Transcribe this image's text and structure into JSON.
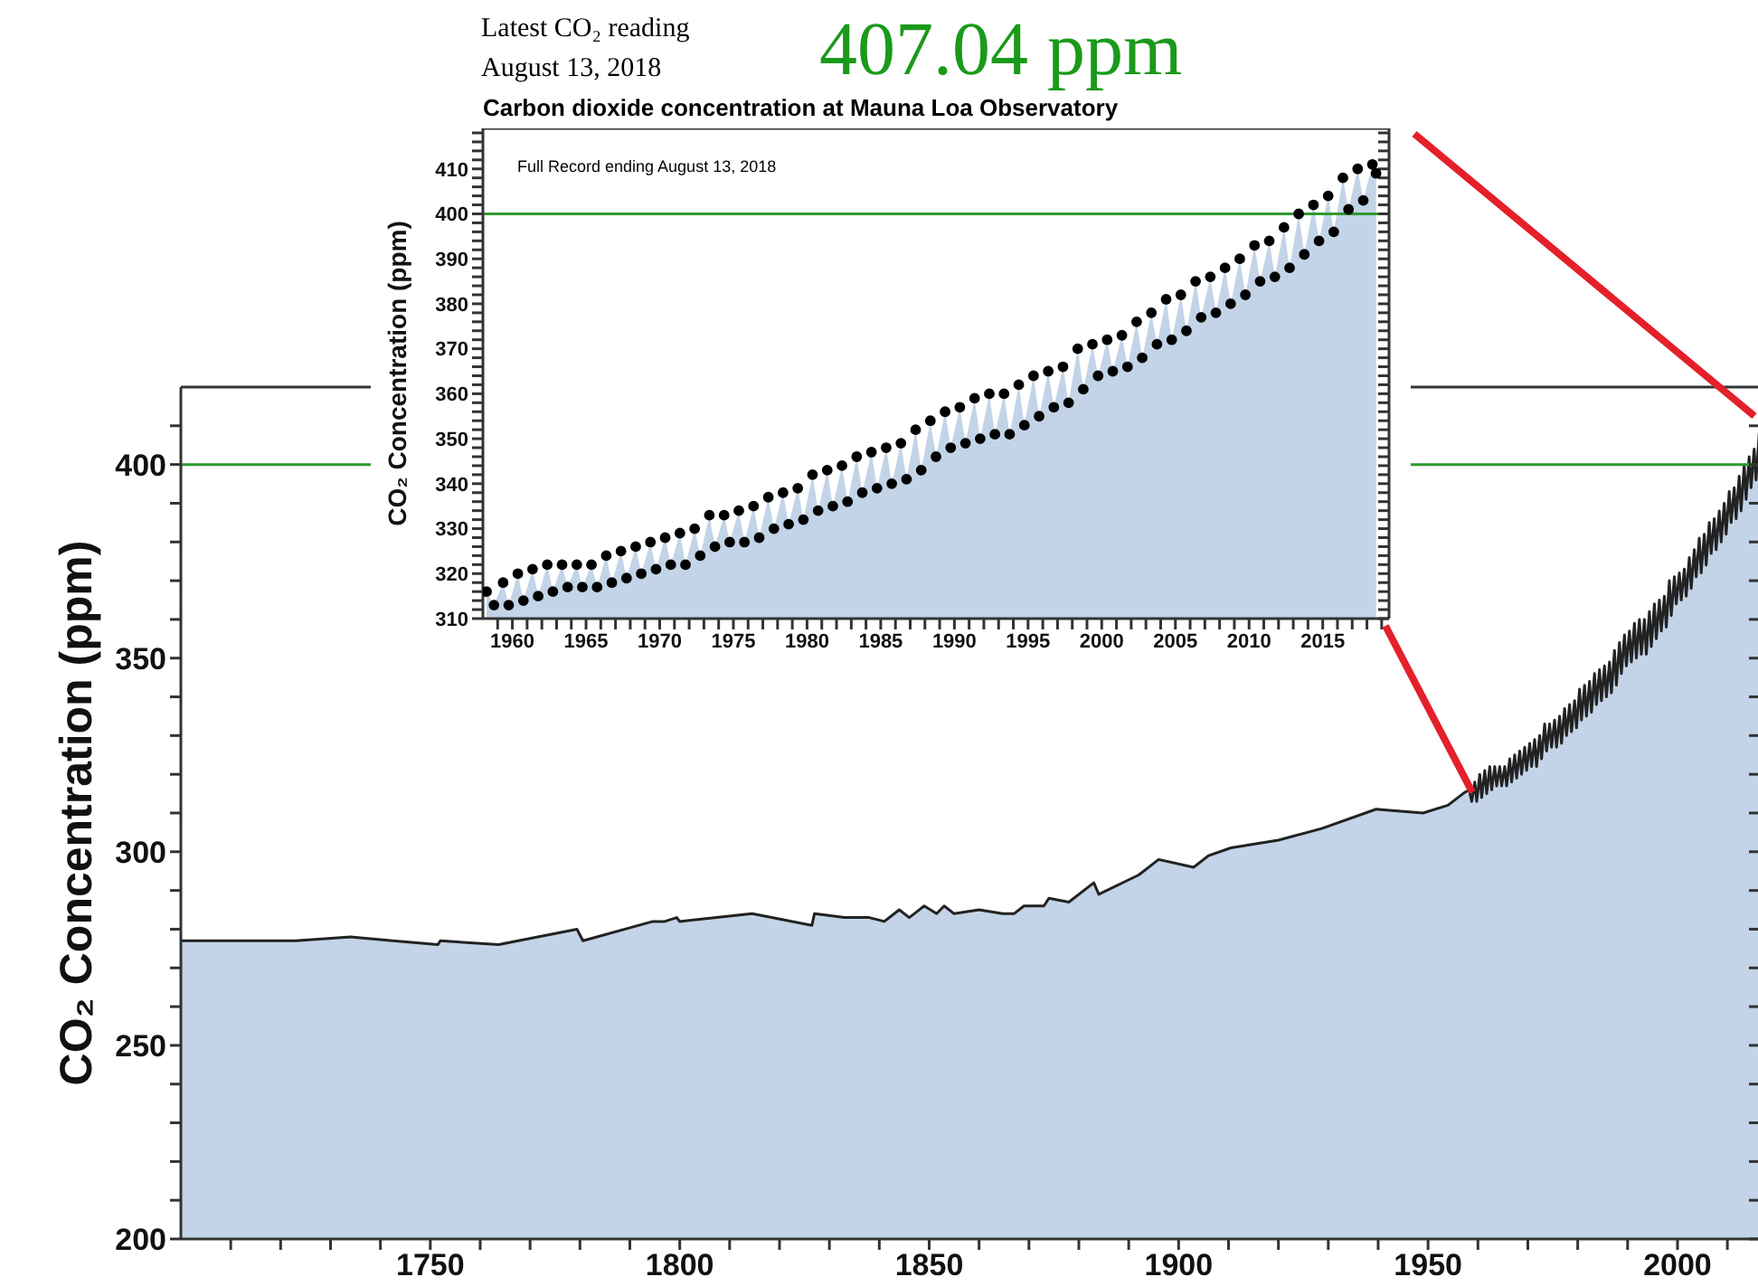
{
  "chart_data": [
    {
      "type": "area",
      "ylabel": "CO₂ Concentration (ppm)",
      "xlim": [
        1700,
        2016.5
      ],
      "ylim": [
        200,
        420
      ],
      "xticks": [
        {
          "value": 1710,
          "label": null
        },
        {
          "value": 1720,
          "label": null
        },
        {
          "value": 1730,
          "label": null
        },
        {
          "value": 1740,
          "label": null
        },
        1750,
        {
          "value": 1760,
          "label": null
        },
        {
          "value": 1770,
          "label": null
        },
        {
          "value": 1780,
          "label": null
        },
        {
          "value": 1790,
          "label": null
        },
        1800,
        {
          "value": 1810,
          "label": null
        },
        {
          "value": 1820,
          "label": null
        },
        {
          "value": 1830,
          "label": null
        },
        {
          "value": 1840,
          "label": null
        },
        1850,
        {
          "value": 1860,
          "label": null
        },
        {
          "value": 1870,
          "label": null
        },
        {
          "value": 1880,
          "label": null
        },
        {
          "value": 1890,
          "label": null
        },
        1900,
        {
          "value": 1910,
          "label": null
        },
        {
          "value": 1920,
          "label": null
        },
        {
          "value": 1930,
          "label": null
        },
        {
          "value": 1940,
          "label": null
        },
        1950,
        {
          "value": 1960,
          "label": null
        },
        {
          "value": 1970,
          "label": null
        },
        {
          "value": 1980,
          "label": null
        },
        {
          "value": 1990,
          "label": null
        },
        2000,
        {
          "value": 2010,
          "label": null
        }
      ],
      "yticks": [
        200,
        {
          "value": 210,
          "label": null
        },
        {
          "value": 220,
          "label": null
        },
        {
          "value": 230,
          "label": null
        },
        {
          "value": 240,
          "label": null
        },
        250,
        {
          "value": 260,
          "label": null
        },
        {
          "value": 270,
          "label": null
        },
        {
          "value": 280,
          "label": null
        },
        {
          "value": 290,
          "label": null
        },
        300,
        {
          "value": 310,
          "label": null
        },
        {
          "value": 320,
          "label": null
        },
        {
          "value": 330,
          "label": null
        },
        {
          "value": 340,
          "label": null
        },
        350,
        {
          "value": 360,
          "label": null
        },
        {
          "value": 370,
          "label": null
        },
        {
          "value": 380,
          "label": null
        },
        {
          "value": 390,
          "label": null
        },
        400,
        {
          "value": 410,
          "label": null
        }
      ],
      "ref_lines": [
        {
          "axis": "y",
          "value": 400,
          "color": "#2e9a2e"
        }
      ],
      "series": [
        {
          "color": "#c3d4e8",
          "x": [
            1700,
            1722.5,
            1723,
            1734,
            1742.5,
            1751.5,
            1752,
            1763.7,
            1779.4,
            1780.6,
            1794.6,
            1797,
            1799.4,
            1800,
            1814.5,
            1826.5,
            1827,
            1833,
            1835,
            1838,
            1841,
            1844,
            1846,
            1849,
            1851.5,
            1853,
            1855,
            1860,
            1864.7,
            1867,
            1869,
            1873,
            1874,
            1878,
            1883,
            1884,
            1892,
            1896,
            1903,
            1906,
            1910.5,
            1920,
            1928.7,
            1939.6,
            1949,
            1954,
            1957,
            1958.25,
            1958.75,
            1959.37,
            1959.75,
            1960.37,
            1960.75,
            1961.37,
            1961.75,
            1962.37,
            1962.75,
            1963.37,
            1963.75,
            1964.37,
            1964.75,
            1965.37,
            1965.75,
            1966.37,
            1966.75,
            1967.37,
            1967.75,
            1968.37,
            1968.75,
            1969.37,
            1969.75,
            1970.37,
            1970.75,
            1971.37,
            1971.75,
            1972.37,
            1972.75,
            1973.37,
            1973.75,
            1974.37,
            1974.75,
            1975.37,
            1975.75,
            1976.37,
            1976.75,
            1977.37,
            1977.75,
            1978.37,
            1978.75,
            1979.37,
            1979.75,
            1980.37,
            1980.75,
            1981.37,
            1981.75,
            1982.37,
            1982.75,
            1983.37,
            1983.75,
            1984.37,
            1984.75,
            1985.37,
            1985.75,
            1986.37,
            1986.75,
            1987.37,
            1987.75,
            1988.37,
            1988.75,
            1989.37,
            1989.75,
            1990.37,
            1990.75,
            1991.37,
            1991.75,
            1992.37,
            1992.75,
            1993.37,
            1993.75,
            1994.37,
            1994.75,
            1995.37,
            1995.75,
            1996.37,
            1996.75,
            1997.37,
            1997.75,
            1998.37,
            1998.75,
            1999.37,
            1999.75,
            2000.37,
            2000.75,
            2001.37,
            2001.75,
            2002.37,
            2002.75,
            2003.37,
            2003.75,
            2004.37,
            2004.75,
            2005.37,
            2005.75,
            2006.37,
            2006.75,
            2007.37,
            2007.75,
            2008.37,
            2008.75,
            2009.37,
            2009.75,
            2010.37,
            2010.75,
            2011.37,
            2011.75,
            2012.37,
            2012.75,
            2013.37,
            2013.75,
            2014.37,
            2014.75,
            2015.37,
            2015.75,
            2016.37
          ],
          "values": [
            277,
            277,
            277,
            278,
            277,
            276,
            277,
            276,
            280,
            277,
            282,
            282,
            283,
            282,
            284,
            281,
            284,
            283,
            283,
            283,
            282,
            285,
            283,
            286,
            284,
            286,
            284,
            285,
            284,
            284,
            286,
            286,
            288,
            287,
            292,
            289,
            294,
            298,
            296,
            299,
            301,
            303,
            306,
            311,
            310,
            312,
            315,
            316,
            313,
            318,
            313,
            320,
            314,
            321,
            315,
            322,
            316,
            322,
            317,
            322,
            317,
            322,
            317,
            324,
            318,
            325,
            319,
            326,
            320,
            327,
            321,
            328,
            322,
            329,
            322,
            330,
            324,
            333,
            326,
            333,
            327,
            334,
            327,
            335,
            328,
            337,
            330,
            338,
            331,
            339,
            332,
            342,
            334,
            343,
            335,
            344,
            336,
            346,
            338,
            347,
            339,
            348,
            340,
            349,
            341,
            352,
            343,
            354,
            346,
            356,
            348,
            357,
            349,
            359,
            350,
            360,
            351,
            360,
            351,
            362,
            353,
            364,
            355,
            365,
            357,
            366,
            358,
            370,
            361,
            371,
            364,
            372,
            365,
            373,
            366,
            376,
            368,
            378,
            371,
            381,
            372,
            382,
            374,
            385,
            377,
            386,
            378,
            388,
            380,
            390,
            382,
            393,
            385,
            394,
            386,
            397,
            388,
            400,
            391,
            402,
            394,
            404,
            396,
            408
          ]
        }
      ]
    },
    {
      "type": "area",
      "title": "Carbon dioxide concentration at Mauna Loa Observatory",
      "ylabel": "CO₂ Concentration (ppm)",
      "marker": "circle",
      "xlim": [
        1958,
        2019.5
      ],
      "ylim": [
        310,
        419
      ],
      "annotations": [
        "Latest CO₂ reading",
        "August 13, 2018",
        "407.04 ppm",
        "Full Record ending August 13, 2018"
      ],
      "xticks": [
        {
          "value": 1959,
          "label": null
        },
        1960,
        {
          "value": 1961,
          "label": null
        },
        {
          "value": 1962,
          "label": null
        },
        {
          "value": 1963,
          "label": null
        },
        {
          "value": 1964,
          "label": null
        },
        1965,
        {
          "value": 1966,
          "label": null
        },
        {
          "value": 1967,
          "label": null
        },
        {
          "value": 1968,
          "label": null
        },
        {
          "value": 1969,
          "label": null
        },
        1970,
        {
          "value": 1971,
          "label": null
        },
        {
          "value": 1972,
          "label": null
        },
        {
          "value": 1973,
          "label": null
        },
        {
          "value": 1974,
          "label": null
        },
        1975,
        {
          "value": 1976,
          "label": null
        },
        {
          "value": 1977,
          "label": null
        },
        {
          "value": 1978,
          "label": null
        },
        {
          "value": 1979,
          "label": null
        },
        1980,
        {
          "value": 1981,
          "label": null
        },
        {
          "value": 1982,
          "label": null
        },
        {
          "value": 1983,
          "label": null
        },
        {
          "value": 1984,
          "label": null
        },
        1985,
        {
          "value": 1986,
          "label": null
        },
        {
          "value": 1987,
          "label": null
        },
        {
          "value": 1988,
          "label": null
        },
        {
          "value": 1989,
          "label": null
        },
        1990,
        {
          "value": 1991,
          "label": null
        },
        {
          "value": 1992,
          "label": null
        },
        {
          "value": 1993,
          "label": null
        },
        {
          "value": 1994,
          "label": null
        },
        1995,
        {
          "value": 1996,
          "label": null
        },
        {
          "value": 1997,
          "label": null
        },
        {
          "value": 1998,
          "label": null
        },
        {
          "value": 1999,
          "label": null
        },
        2000,
        {
          "value": 2001,
          "label": null
        },
        {
          "value": 2002,
          "label": null
        },
        {
          "value": 2003,
          "label": null
        },
        {
          "value": 2004,
          "label": null
        },
        2005,
        {
          "value": 2006,
          "label": null
        },
        {
          "value": 2007,
          "label": null
        },
        {
          "value": 2008,
          "label": null
        },
        {
          "value": 2009,
          "label": null
        },
        2010,
        {
          "value": 2011,
          "label": null
        },
        {
          "value": 2012,
          "label": null
        },
        {
          "value": 2013,
          "label": null
        },
        {
          "value": 2014,
          "label": null
        },
        2015,
        {
          "value": 2016,
          "label": null
        },
        {
          "value": 2017,
          "label": null
        },
        {
          "value": 2018,
          "label": null
        },
        {
          "value": 2019,
          "label": null
        }
      ],
      "yticks": [
        310,
        {
          "value": 312,
          "label": null
        },
        {
          "value": 314,
          "label": null
        },
        {
          "value": 316,
          "label": null
        },
        {
          "value": 318,
          "label": null
        },
        320,
        {
          "value": 322,
          "label": null
        },
        {
          "value": 324,
          "label": null
        },
        {
          "value": 326,
          "label": null
        },
        {
          "value": 328,
          "label": null
        },
        330,
        {
          "value": 332,
          "label": null
        },
        {
          "value": 334,
          "label": null
        },
        {
          "value": 336,
          "label": null
        },
        {
          "value": 338,
          "label": null
        },
        340,
        {
          "value": 342,
          "label": null
        },
        {
          "value": 344,
          "label": null
        },
        {
          "value": 346,
          "label": null
        },
        {
          "value": 348,
          "label": null
        },
        350,
        {
          "value": 352,
          "label": null
        },
        {
          "value": 354,
          "label": null
        },
        {
          "value": 356,
          "label": null
        },
        {
          "value": 358,
          "label": null
        },
        360,
        {
          "value": 362,
          "label": null
        },
        {
          "value": 364,
          "label": null
        },
        {
          "value": 366,
          "label": null
        },
        {
          "value": 368,
          "label": null
        },
        370,
        {
          "value": 372,
          "label": null
        },
        {
          "value": 374,
          "label": null
        },
        {
          "value": 376,
          "label": null
        },
        {
          "value": 378,
          "label": null
        },
        380,
        {
          "value": 382,
          "label": null
        },
        {
          "value": 384,
          "label": null
        },
        {
          "value": 386,
          "label": null
        },
        {
          "value": 388,
          "label": null
        },
        390,
        {
          "value": 392,
          "label": null
        },
        {
          "value": 394,
          "label": null
        },
        {
          "value": 396,
          "label": null
        },
        {
          "value": 398,
          "label": null
        },
        400,
        {
          "value": 402,
          "label": null
        },
        {
          "value": 404,
          "label": null
        },
        {
          "value": 406,
          "label": null
        },
        {
          "value": 408,
          "label": null
        },
        410,
        {
          "value": 412,
          "label": null
        },
        {
          "value": 414,
          "label": null
        },
        {
          "value": 416,
          "label": null
        },
        {
          "value": 418,
          "label": null
        }
      ],
      "ref_lines": [
        {
          "axis": "y",
          "value": 400,
          "color": "#2e9a2e"
        }
      ],
      "series": [
        {
          "color": "#c3d4e8",
          "x": [
            1958.25,
            1958.75,
            1959.37,
            1959.75,
            1960.37,
            1960.75,
            1961.37,
            1961.75,
            1962.37,
            1962.75,
            1963.37,
            1963.75,
            1964.37,
            1964.75,
            1965.37,
            1965.75,
            1966.37,
            1966.75,
            1967.37,
            1967.75,
            1968.37,
            1968.75,
            1969.37,
            1969.75,
            1970.37,
            1970.75,
            1971.37,
            1971.75,
            1972.37,
            1972.75,
            1973.37,
            1973.75,
            1974.37,
            1974.75,
            1975.37,
            1975.75,
            1976.37,
            1976.75,
            1977.37,
            1977.75,
            1978.37,
            1978.75,
            1979.37,
            1979.75,
            1980.37,
            1980.75,
            1981.37,
            1981.75,
            1982.37,
            1982.75,
            1983.37,
            1983.75,
            1984.37,
            1984.75,
            1985.37,
            1985.75,
            1986.37,
            1986.75,
            1987.37,
            1987.75,
            1988.37,
            1988.75,
            1989.37,
            1989.75,
            1990.37,
            1990.75,
            1991.37,
            1991.75,
            1992.37,
            1992.75,
            1993.37,
            1993.75,
            1994.37,
            1994.75,
            1995.37,
            1995.75,
            1996.37,
            1996.75,
            1997.37,
            1997.75,
            1998.37,
            1998.75,
            1999.37,
            1999.75,
            2000.37,
            2000.75,
            2001.37,
            2001.75,
            2002.37,
            2002.75,
            2003.37,
            2003.75,
            2004.37,
            2004.75,
            2005.37,
            2005.75,
            2006.37,
            2006.75,
            2007.37,
            2007.75,
            2008.37,
            2008.75,
            2009.37,
            2009.75,
            2010.37,
            2010.75,
            2011.37,
            2011.75,
            2012.37,
            2012.75,
            2013.37,
            2013.75,
            2014.37,
            2014.75,
            2015.37,
            2015.75,
            2016.37,
            2016.75,
            2017.37,
            2017.75,
            2018.37,
            2018.62
          ],
          "values": [
            316,
            313,
            318,
            313,
            320,
            314,
            321,
            315,
            322,
            316,
            322,
            317,
            322,
            317,
            322,
            317,
            324,
            318,
            325,
            319,
            326,
            320,
            327,
            321,
            328,
            322,
            329,
            322,
            330,
            324,
            333,
            326,
            333,
            327,
            334,
            327,
            335,
            328,
            337,
            330,
            338,
            331,
            339,
            332,
            342,
            334,
            343,
            335,
            344,
            336,
            346,
            338,
            347,
            339,
            348,
            340,
            349,
            341,
            352,
            343,
            354,
            346,
            356,
            348,
            357,
            349,
            359,
            350,
            360,
            351,
            360,
            351,
            362,
            353,
            364,
            355,
            365,
            357,
            366,
            358,
            370,
            361,
            371,
            364,
            372,
            365,
            373,
            366,
            376,
            368,
            378,
            371,
            381,
            372,
            382,
            374,
            385,
            377,
            386,
            378,
            388,
            380,
            390,
            382,
            393,
            385,
            394,
            386,
            397,
            388,
            400,
            391,
            402,
            394,
            404,
            396,
            408,
            401,
            410,
            403,
            411,
            409
          ]
        }
      ]
    }
  ]
}
